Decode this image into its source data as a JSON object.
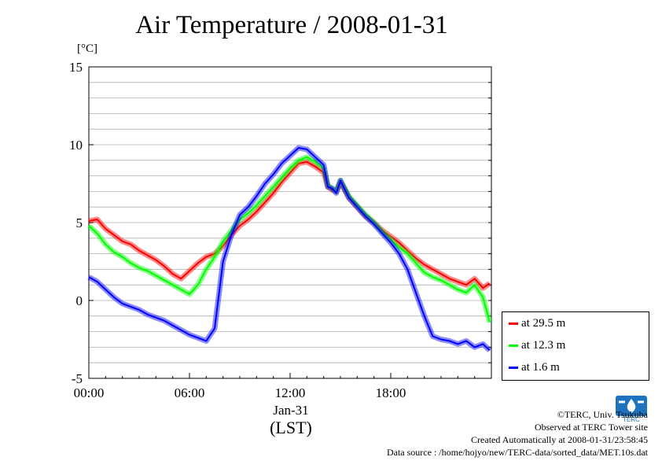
{
  "chart_data": {
    "type": "line",
    "title": "Air Temperature / 2008-01-31",
    "unit_label": "[°C]",
    "xlabel_date": "Jan-31",
    "xlabel_tz": "(LST)",
    "ylim": [
      -5,
      15
    ],
    "y_ticks": [
      "15",
      "10",
      "5",
      "0",
      "-5"
    ],
    "y_tick_values": [
      15,
      10,
      5,
      0,
      -5
    ],
    "xlim_hours": [
      0,
      24
    ],
    "x_ticks": [
      "00:00",
      "06:00",
      "12:00",
      "18:00"
    ],
    "x_tick_hours": [
      0,
      6,
      12,
      18
    ],
    "grid": true,
    "legend_position": "lower-right outside",
    "x_hours": [
      0,
      0.5,
      1,
      1.5,
      2,
      2.5,
      3,
      3.5,
      4,
      4.5,
      5,
      5.5,
      6,
      6.5,
      7,
      7.5,
      8,
      8.5,
      9,
      9.5,
      10,
      10.5,
      11,
      11.5,
      12,
      12.5,
      13,
      13.5,
      14,
      14.25,
      14.5,
      14.75,
      15,
      15.5,
      16,
      16.5,
      17,
      17.5,
      18,
      18.5,
      19,
      19.5,
      20,
      20.5,
      21,
      21.5,
      22,
      22.5,
      23,
      23.5,
      23.9
    ],
    "series": [
      {
        "name": "at 29.5 m",
        "color": "#ff0000",
        "values": [
          5.1,
          5.2,
          4.6,
          4.2,
          3.8,
          3.6,
          3.2,
          2.9,
          2.6,
          2.2,
          1.7,
          1.4,
          1.9,
          2.4,
          2.8,
          3.0,
          3.5,
          4.2,
          4.8,
          5.2,
          5.7,
          6.3,
          6.9,
          7.6,
          8.2,
          8.8,
          8.9,
          8.6,
          8.2,
          7.3,
          7.1,
          7.0,
          7.6,
          6.6,
          6.0,
          5.4,
          5.0,
          4.5,
          4.1,
          3.7,
          3.2,
          2.7,
          2.3,
          2.0,
          1.7,
          1.4,
          1.2,
          1.0,
          1.4,
          0.8,
          1.1
        ]
      },
      {
        "name": "at 12.3 m",
        "color": "#00ff00",
        "values": [
          4.8,
          4.3,
          3.6,
          3.1,
          2.8,
          2.4,
          2.1,
          1.9,
          1.6,
          1.3,
          1.0,
          0.7,
          0.4,
          1.0,
          2.0,
          2.8,
          3.8,
          4.5,
          5.2,
          5.6,
          6.1,
          6.7,
          7.3,
          7.9,
          8.5,
          9.0,
          9.2,
          8.9,
          8.5,
          7.4,
          7.2,
          7.0,
          7.7,
          6.7,
          6.1,
          5.5,
          5.0,
          4.4,
          3.9,
          3.4,
          3.0,
          2.4,
          1.8,
          1.5,
          1.3,
          1.0,
          0.7,
          0.5,
          1.0,
          0.2,
          -1.4
        ]
      },
      {
        "name": "at 1.6 m",
        "color": "#0000ff",
        "values": [
          1.5,
          1.2,
          0.7,
          0.2,
          -0.2,
          -0.4,
          -0.6,
          -0.9,
          -1.1,
          -1.3,
          -1.6,
          -1.9,
          -2.2,
          -2.4,
          -2.6,
          -1.8,
          2.5,
          4.2,
          5.5,
          6.0,
          6.7,
          7.5,
          8.1,
          8.8,
          9.3,
          9.8,
          9.7,
          9.2,
          8.7,
          7.3,
          7.2,
          6.9,
          7.7,
          6.6,
          6.0,
          5.4,
          4.9,
          4.3,
          3.7,
          3.0,
          2.0,
          0.5,
          -1.0,
          -2.3,
          -2.5,
          -2.6,
          -2.8,
          -2.6,
          -3.0,
          -2.8,
          -3.2
        ]
      }
    ]
  },
  "credits": {
    "line1": "©TERC, Univ. Tsukuba",
    "line2": "Observed at TERC Tower site",
    "line3": "Created Automatically at 2008-01-31/23:58:45",
    "line4": "Data source : /home/hojyo/new/TERC-data/sorted_data/MET.10s.dat"
  },
  "logo": {
    "text": "TERC",
    "color": "#1e73be"
  }
}
